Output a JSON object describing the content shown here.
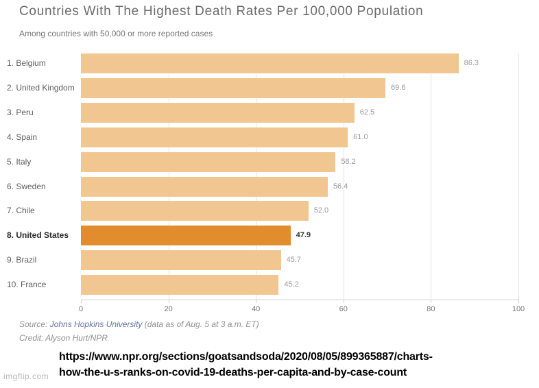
{
  "title": "Countries With The Highest Death Rates Per 100,000 Population",
  "subtitle": "Among countries with 50,000 or more reported cases",
  "chart_data": {
    "type": "bar",
    "orientation": "horizontal",
    "title": "Countries With The Highest Death Rates Per 100,000 Population",
    "subtitle": "Among countries with 50,000 or more reported cases",
    "categories": [
      "1. Belgium",
      "2. United Kingdom",
      "3. Peru",
      "4. Spain",
      "5. Italy",
      "6. Sweden",
      "7. Chile",
      "8. United States",
      "9. Brazil",
      "10. France"
    ],
    "values": [
      86.3,
      69.6,
      62.5,
      61.0,
      58.2,
      56.4,
      52.0,
      47.9,
      45.7,
      45.2
    ],
    "highlight_index": 7,
    "highlight_category": "8. United States",
    "xlabel": "",
    "ylabel": "",
    "xlim": [
      0,
      100
    ],
    "x_ticks": [
      0,
      20,
      40,
      60,
      80,
      100
    ],
    "grid": "vertical",
    "legend": "none",
    "colors": {
      "bar": "#f2c690",
      "highlight_bar": "#e18d2d",
      "gridline": "#e4e4e4",
      "axis": "#cfcfcf",
      "value_label": "#9a9a9a",
      "highlight_value_label": "#333333"
    }
  },
  "footer": {
    "source_prefix": "Source: ",
    "source_link": "Johns Hopkins University",
    "source_suffix": " (data as of Aug. 5 at 3 a.m. ET)",
    "credit": "Credit: Alyson Hurt/NPR"
  },
  "url_overlay": {
    "line1": "https://www.npr.org/sections/goatsandsoda/2020/08/05/899365887/charts-",
    "line2": "how-the-u-s-ranks-on-covid-19-deaths-per-capita-and-by-case-count"
  },
  "watermark": "imgflip.com"
}
